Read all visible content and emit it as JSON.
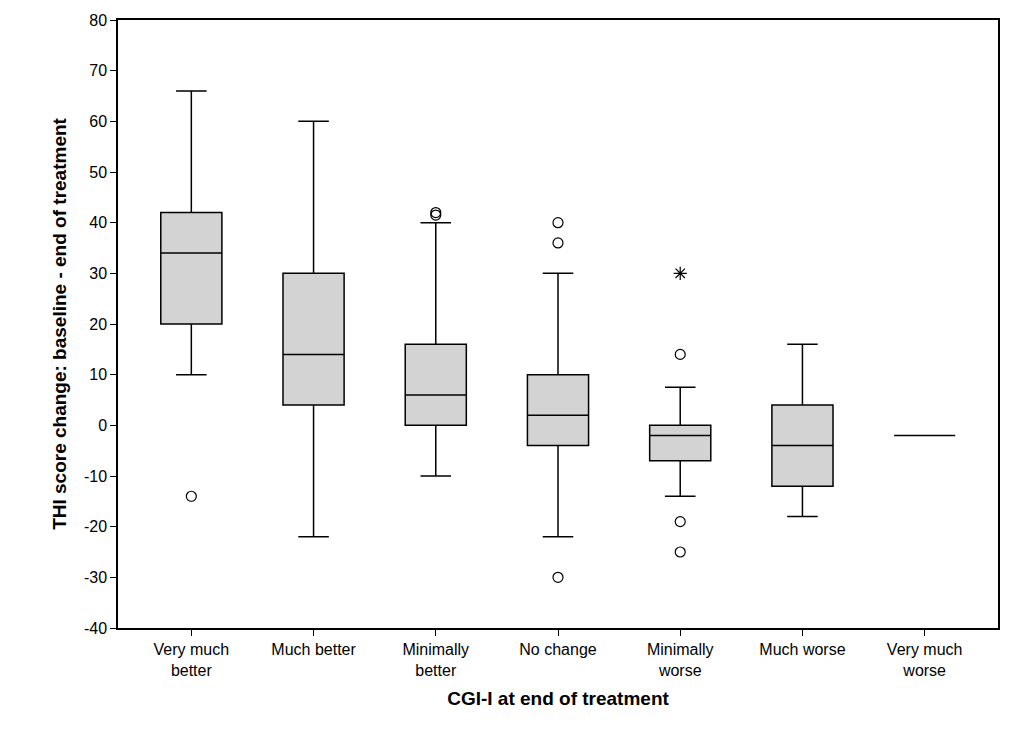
{
  "chart_data": {
    "type": "box",
    "x_label": "CGI-I at end of treatment",
    "y_label": "THI score change: baseline - end of treatment",
    "categories": [
      "Very much better",
      "Much better",
      "Minimally better",
      "No change",
      "Minimally worse",
      "Much worse",
      "Very much worse"
    ],
    "q1": [
      20,
      4,
      0,
      -4,
      -7,
      -12,
      -2
    ],
    "median": [
      34,
      14,
      6,
      2,
      -2,
      -4,
      -2
    ],
    "q3": [
      42,
      30,
      16,
      10,
      0,
      4,
      -2
    ],
    "lower_whisker": [
      10,
      -22,
      -10,
      -22,
      -14,
      -18,
      -2
    ],
    "upper_whisker": [
      66,
      60,
      40,
      30,
      7.5,
      16,
      -2
    ],
    "outliers": [
      [
        -14
      ],
      [],
      [
        42,
        41.5
      ],
      [
        40,
        36,
        -30
      ],
      [
        14,
        -19,
        -25
      ],
      [],
      []
    ],
    "extremes": [
      [],
      [],
      [],
      [],
      [
        30
      ],
      [],
      []
    ],
    "color": "#d3d3d3",
    "ylim": [
      -40,
      80
    ],
    "yticks": [
      -40,
      -30,
      -20,
      -10,
      0,
      10,
      20,
      30,
      40,
      50,
      60,
      70,
      80
    ],
    "grid": false
  }
}
